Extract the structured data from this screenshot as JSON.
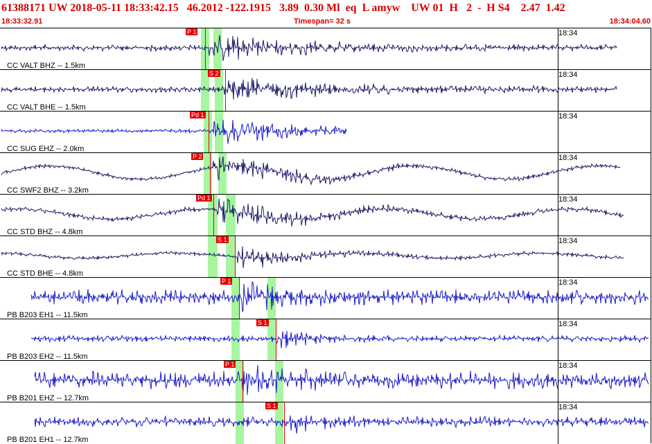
{
  "header": {
    "summary": "61388171 UW 2018-05-11 18:33:42.15   46.2012 -122.1915   3.89  0.30 Ml  eq  L amyw    UW 01  H   2  -  H S4    2.47  1.42",
    "start_time": "18:33:32.91",
    "timespan": "Timespan=  32 s",
    "end_time": "18:34:04.60"
  },
  "colors": {
    "header_text": "#d40000",
    "pick": "#e80000",
    "band": "#a8f5a0",
    "trace_dark": "#1a1a66",
    "trace_blue": "#1a1acc"
  },
  "panels": [
    {
      "label": "CC VALT BHZ -- 1.5km",
      "time": "18:34",
      "pick": "P 1",
      "color": "dark"
    },
    {
      "label": "CC VALT BHE -- 1.5km",
      "time": "18:34",
      "pick": "S 2",
      "color": "dark"
    },
    {
      "label": "CC SUG EHZ -- 2.0km",
      "time": "18:34",
      "pick": "Pd 1",
      "color": "blue"
    },
    {
      "label": "CC SWF2 BHZ -- 3.2km",
      "time": "18:34",
      "pick": "P 2",
      "color": "dark"
    },
    {
      "label": "CC STD BHZ -- 4.8km",
      "time": "18:34",
      "pick": "Pd 1",
      "color": "dark"
    },
    {
      "label": "CC STD BHE -- 4.8km",
      "time": "18:34",
      "pick": "S 1",
      "color": "dark"
    },
    {
      "label": "PB B203 EH1 -- 11.5km",
      "time": "18:34",
      "pick": "P 1",
      "color": "blue"
    },
    {
      "label": "PB B203 EH2 -- 11.5km",
      "time": "18:34",
      "pick": "S 1",
      "color": "blue"
    },
    {
      "label": "PB B201 EHZ -- 12.7km",
      "time": "18:34",
      "pick": "P 1",
      "color": "blue"
    },
    {
      "label": "PB B201 EH1 -- 12.7km",
      "time": "18:34",
      "pick": "S 1",
      "color": "blue"
    }
  ]
}
